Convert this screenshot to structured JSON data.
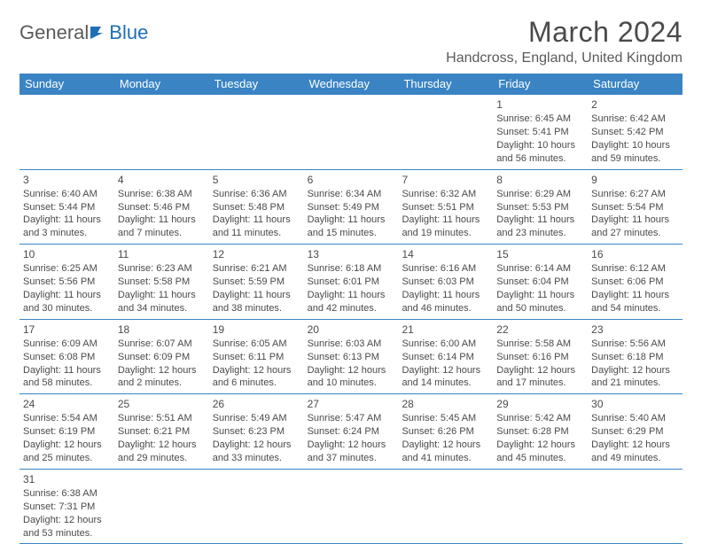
{
  "logo": {
    "text1": "General",
    "text2": "Blue"
  },
  "title": "March 2024",
  "location": "Handcross, England, United Kingdom",
  "day_headers": [
    "Sunday",
    "Monday",
    "Tuesday",
    "Wednesday",
    "Thursday",
    "Friday",
    "Saturday"
  ],
  "colors": {
    "header_bg": "#3a84c4",
    "header_text": "#ffffff",
    "border": "#3a84c4",
    "body_text": "#4a4a4a",
    "logo_gray": "#5a5a5a",
    "logo_blue": "#1e6fb8"
  },
  "weeks": [
    [
      null,
      null,
      null,
      null,
      null,
      {
        "n": "1",
        "sr": "Sunrise: 6:45 AM",
        "ss": "Sunset: 5:41 PM",
        "d1": "Daylight: 10 hours",
        "d2": "and 56 minutes."
      },
      {
        "n": "2",
        "sr": "Sunrise: 6:42 AM",
        "ss": "Sunset: 5:42 PM",
        "d1": "Daylight: 10 hours",
        "d2": "and 59 minutes."
      }
    ],
    [
      {
        "n": "3",
        "sr": "Sunrise: 6:40 AM",
        "ss": "Sunset: 5:44 PM",
        "d1": "Daylight: 11 hours",
        "d2": "and 3 minutes."
      },
      {
        "n": "4",
        "sr": "Sunrise: 6:38 AM",
        "ss": "Sunset: 5:46 PM",
        "d1": "Daylight: 11 hours",
        "d2": "and 7 minutes."
      },
      {
        "n": "5",
        "sr": "Sunrise: 6:36 AM",
        "ss": "Sunset: 5:48 PM",
        "d1": "Daylight: 11 hours",
        "d2": "and 11 minutes."
      },
      {
        "n": "6",
        "sr": "Sunrise: 6:34 AM",
        "ss": "Sunset: 5:49 PM",
        "d1": "Daylight: 11 hours",
        "d2": "and 15 minutes."
      },
      {
        "n": "7",
        "sr": "Sunrise: 6:32 AM",
        "ss": "Sunset: 5:51 PM",
        "d1": "Daylight: 11 hours",
        "d2": "and 19 minutes."
      },
      {
        "n": "8",
        "sr": "Sunrise: 6:29 AM",
        "ss": "Sunset: 5:53 PM",
        "d1": "Daylight: 11 hours",
        "d2": "and 23 minutes."
      },
      {
        "n": "9",
        "sr": "Sunrise: 6:27 AM",
        "ss": "Sunset: 5:54 PM",
        "d1": "Daylight: 11 hours",
        "d2": "and 27 minutes."
      }
    ],
    [
      {
        "n": "10",
        "sr": "Sunrise: 6:25 AM",
        "ss": "Sunset: 5:56 PM",
        "d1": "Daylight: 11 hours",
        "d2": "and 30 minutes."
      },
      {
        "n": "11",
        "sr": "Sunrise: 6:23 AM",
        "ss": "Sunset: 5:58 PM",
        "d1": "Daylight: 11 hours",
        "d2": "and 34 minutes."
      },
      {
        "n": "12",
        "sr": "Sunrise: 6:21 AM",
        "ss": "Sunset: 5:59 PM",
        "d1": "Daylight: 11 hours",
        "d2": "and 38 minutes."
      },
      {
        "n": "13",
        "sr": "Sunrise: 6:18 AM",
        "ss": "Sunset: 6:01 PM",
        "d1": "Daylight: 11 hours",
        "d2": "and 42 minutes."
      },
      {
        "n": "14",
        "sr": "Sunrise: 6:16 AM",
        "ss": "Sunset: 6:03 PM",
        "d1": "Daylight: 11 hours",
        "d2": "and 46 minutes."
      },
      {
        "n": "15",
        "sr": "Sunrise: 6:14 AM",
        "ss": "Sunset: 6:04 PM",
        "d1": "Daylight: 11 hours",
        "d2": "and 50 minutes."
      },
      {
        "n": "16",
        "sr": "Sunrise: 6:12 AM",
        "ss": "Sunset: 6:06 PM",
        "d1": "Daylight: 11 hours",
        "d2": "and 54 minutes."
      }
    ],
    [
      {
        "n": "17",
        "sr": "Sunrise: 6:09 AM",
        "ss": "Sunset: 6:08 PM",
        "d1": "Daylight: 11 hours",
        "d2": "and 58 minutes."
      },
      {
        "n": "18",
        "sr": "Sunrise: 6:07 AM",
        "ss": "Sunset: 6:09 PM",
        "d1": "Daylight: 12 hours",
        "d2": "and 2 minutes."
      },
      {
        "n": "19",
        "sr": "Sunrise: 6:05 AM",
        "ss": "Sunset: 6:11 PM",
        "d1": "Daylight: 12 hours",
        "d2": "and 6 minutes."
      },
      {
        "n": "20",
        "sr": "Sunrise: 6:03 AM",
        "ss": "Sunset: 6:13 PM",
        "d1": "Daylight: 12 hours",
        "d2": "and 10 minutes."
      },
      {
        "n": "21",
        "sr": "Sunrise: 6:00 AM",
        "ss": "Sunset: 6:14 PM",
        "d1": "Daylight: 12 hours",
        "d2": "and 14 minutes."
      },
      {
        "n": "22",
        "sr": "Sunrise: 5:58 AM",
        "ss": "Sunset: 6:16 PM",
        "d1": "Daylight: 12 hours",
        "d2": "and 17 minutes."
      },
      {
        "n": "23",
        "sr": "Sunrise: 5:56 AM",
        "ss": "Sunset: 6:18 PM",
        "d1": "Daylight: 12 hours",
        "d2": "and 21 minutes."
      }
    ],
    [
      {
        "n": "24",
        "sr": "Sunrise: 5:54 AM",
        "ss": "Sunset: 6:19 PM",
        "d1": "Daylight: 12 hours",
        "d2": "and 25 minutes."
      },
      {
        "n": "25",
        "sr": "Sunrise: 5:51 AM",
        "ss": "Sunset: 6:21 PM",
        "d1": "Daylight: 12 hours",
        "d2": "and 29 minutes."
      },
      {
        "n": "26",
        "sr": "Sunrise: 5:49 AM",
        "ss": "Sunset: 6:23 PM",
        "d1": "Daylight: 12 hours",
        "d2": "and 33 minutes."
      },
      {
        "n": "27",
        "sr": "Sunrise: 5:47 AM",
        "ss": "Sunset: 6:24 PM",
        "d1": "Daylight: 12 hours",
        "d2": "and 37 minutes."
      },
      {
        "n": "28",
        "sr": "Sunrise: 5:45 AM",
        "ss": "Sunset: 6:26 PM",
        "d1": "Daylight: 12 hours",
        "d2": "and 41 minutes."
      },
      {
        "n": "29",
        "sr": "Sunrise: 5:42 AM",
        "ss": "Sunset: 6:28 PM",
        "d1": "Daylight: 12 hours",
        "d2": "and 45 minutes."
      },
      {
        "n": "30",
        "sr": "Sunrise: 5:40 AM",
        "ss": "Sunset: 6:29 PM",
        "d1": "Daylight: 12 hours",
        "d2": "and 49 minutes."
      }
    ],
    [
      {
        "n": "31",
        "sr": "Sunrise: 6:38 AM",
        "ss": "Sunset: 7:31 PM",
        "d1": "Daylight: 12 hours",
        "d2": "and 53 minutes."
      },
      null,
      null,
      null,
      null,
      null,
      null
    ]
  ]
}
